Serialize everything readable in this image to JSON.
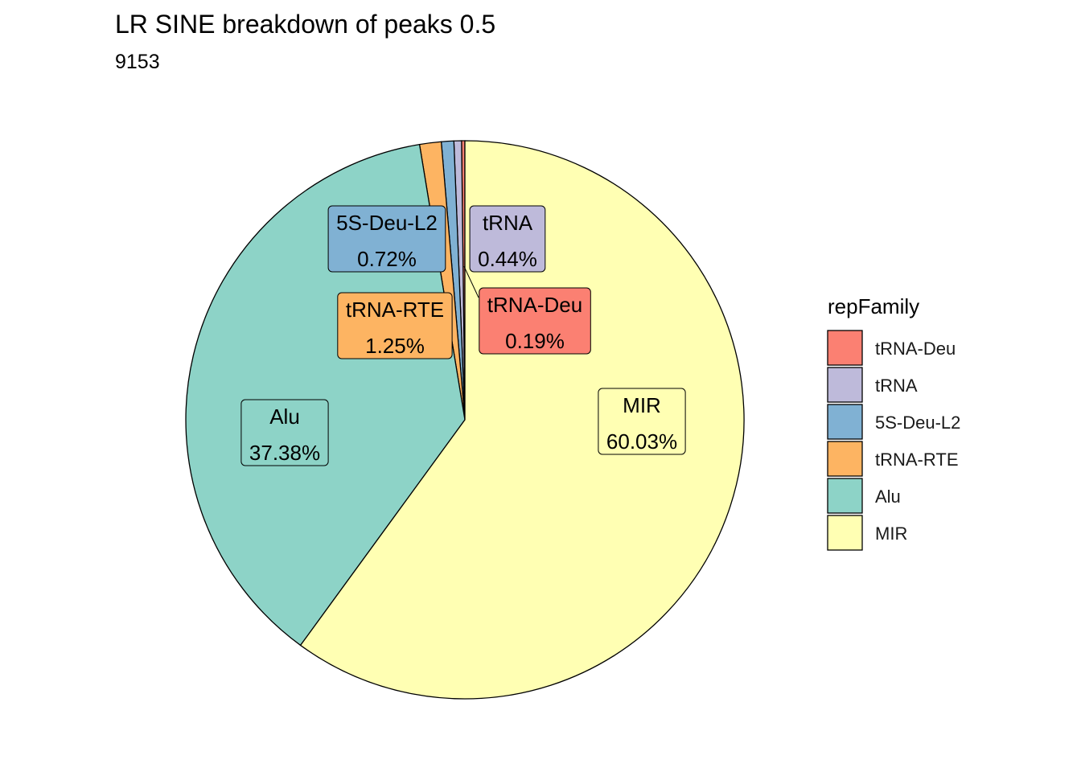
{
  "chart_data": {
    "type": "pie",
    "title": "LR SINE breakdown of peaks 0.5",
    "subtitle": "9153",
    "legend_title": "repFamily",
    "legend_position": "right",
    "slices": [
      {
        "name": "tRNA-Deu",
        "value": 0.19,
        "label": "0.19%",
        "color": "#FB8072"
      },
      {
        "name": "tRNA",
        "value": 0.44,
        "label": "0.44%",
        "color": "#BEBADA"
      },
      {
        "name": "5S-Deu-L2",
        "value": 0.72,
        "label": "0.72%",
        "color": "#80B1D3"
      },
      {
        "name": "tRNA-RTE",
        "value": 1.25,
        "label": "1.25%",
        "color": "#FDB462"
      },
      {
        "name": "Alu",
        "value": 37.38,
        "label": "37.38%",
        "color": "#8DD3C7"
      },
      {
        "name": "MIR",
        "value": 60.03,
        "label": "60.03%",
        "color": "#FFFFB3"
      }
    ]
  }
}
